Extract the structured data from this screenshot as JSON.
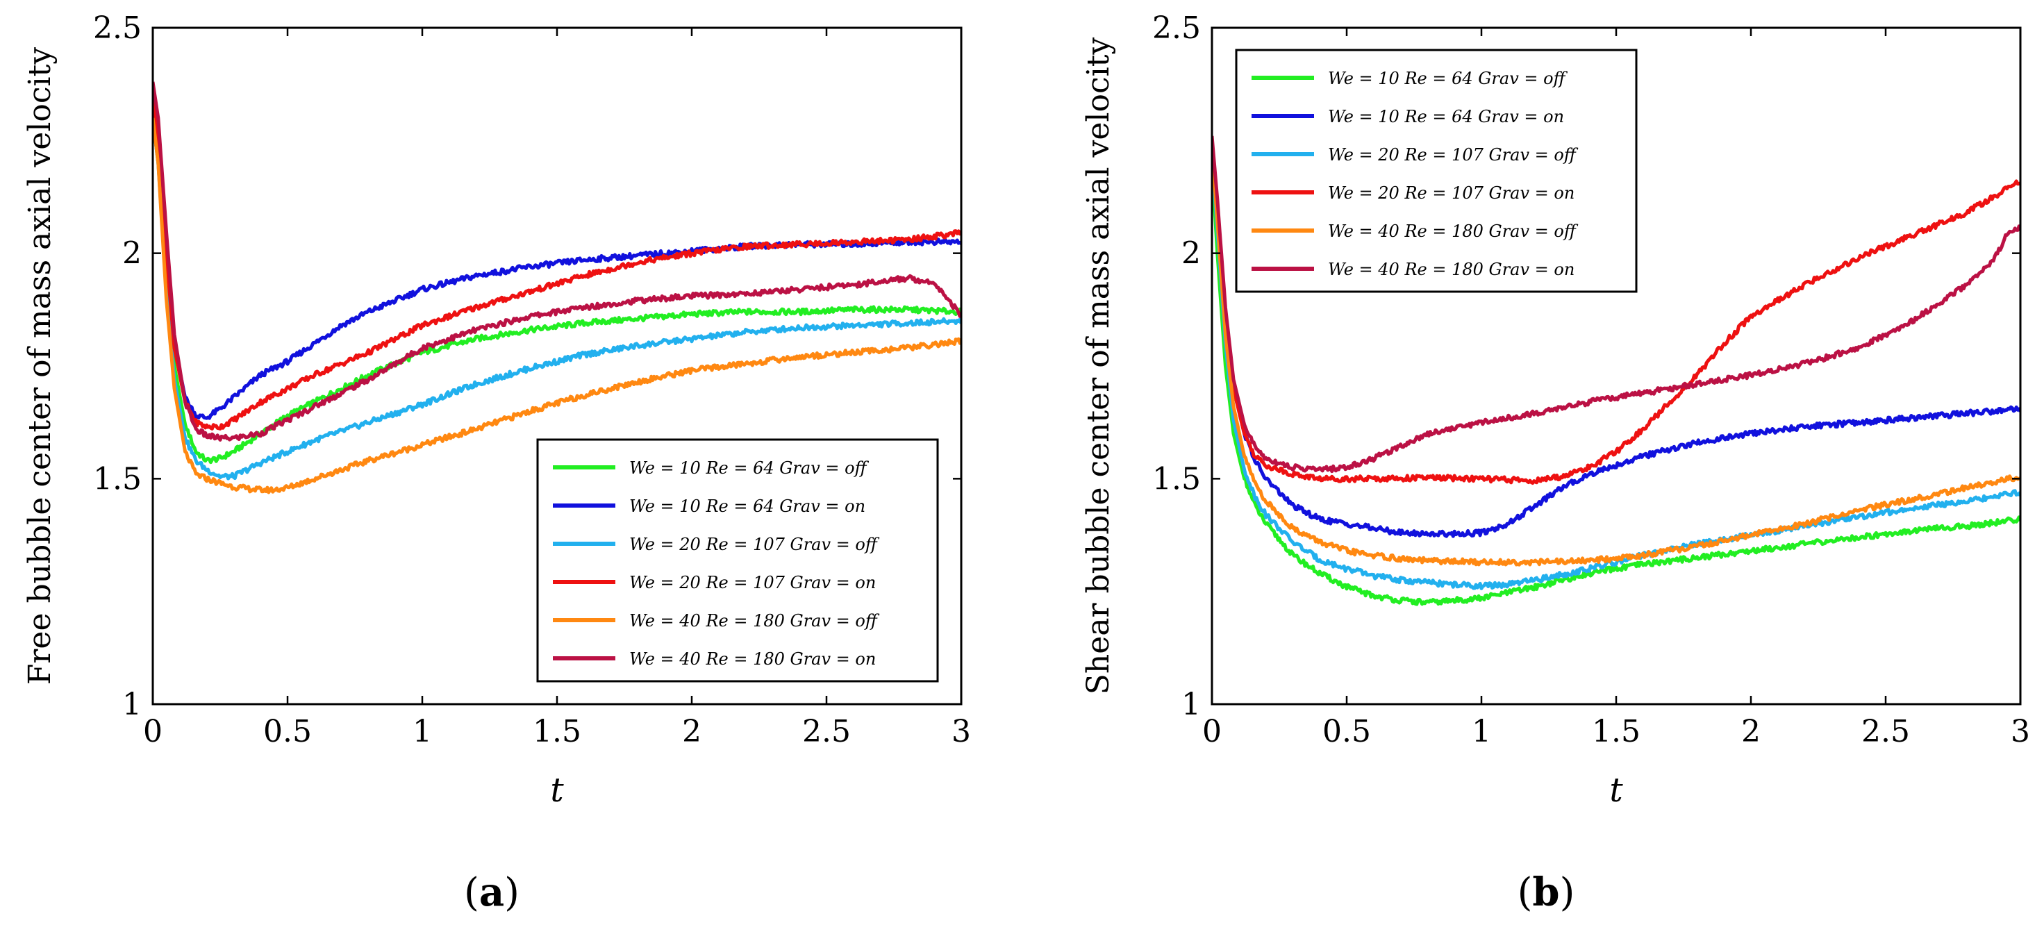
{
  "chart_data": [
    {
      "type": "line",
      "panel": "(a)",
      "panel_letter": "a",
      "xlabel": "t",
      "ylabel": "Free bubble center of mass axial velocity",
      "xlim": [
        0,
        3
      ],
      "ylim": [
        1,
        2.5
      ],
      "xticks": [
        0,
        0.5,
        1,
        1.5,
        2,
        2.5,
        3
      ],
      "xtick_labels": [
        "0",
        "0.5",
        "1",
        "1.5",
        "2",
        "2.5",
        "3"
      ],
      "yticks": [
        1,
        1.5,
        2,
        2.5
      ],
      "ytick_labels": [
        "1",
        "1.5",
        "2",
        "2.5"
      ],
      "legend_position": "bottom-right",
      "series": [
        {
          "name": "We = 10 Re = 64 Grav = off",
          "color": "#22ee22",
          "x": [
            0,
            0.02,
            0.05,
            0.08,
            0.12,
            0.16,
            0.2,
            0.25,
            0.3,
            0.4,
            0.5,
            0.6,
            0.7,
            0.8,
            1.0,
            1.2,
            1.4,
            1.6,
            1.8,
            2.0,
            2.2,
            2.4,
            2.6,
            2.8,
            3.0
          ],
          "y": [
            2.3,
            2.2,
            1.95,
            1.75,
            1.62,
            1.56,
            1.54,
            1.545,
            1.56,
            1.6,
            1.64,
            1.67,
            1.7,
            1.73,
            1.78,
            1.81,
            1.83,
            1.845,
            1.855,
            1.865,
            1.87,
            1.87,
            1.875,
            1.875,
            1.87
          ]
        },
        {
          "name": "We = 10 Re = 64 Grav = on",
          "color": "#1111dd",
          "x": [
            0,
            0.02,
            0.05,
            0.08,
            0.12,
            0.16,
            0.2,
            0.25,
            0.3,
            0.4,
            0.5,
            0.6,
            0.7,
            0.8,
            1.0,
            1.2,
            1.4,
            1.6,
            1.8,
            2.0,
            2.2,
            2.4,
            2.6,
            2.8,
            3.0
          ],
          "y": [
            2.35,
            2.25,
            2.0,
            1.8,
            1.68,
            1.64,
            1.635,
            1.655,
            1.68,
            1.73,
            1.76,
            1.8,
            1.84,
            1.87,
            1.92,
            1.95,
            1.97,
            1.985,
            1.995,
            2.005,
            2.015,
            2.02,
            2.02,
            2.025,
            2.025
          ]
        },
        {
          "name": "We = 20 Re = 107 Grav = off",
          "color": "#22b0ee",
          "x": [
            0,
            0.02,
            0.05,
            0.08,
            0.12,
            0.16,
            0.2,
            0.25,
            0.3,
            0.35,
            0.4,
            0.5,
            0.6,
            0.8,
            1.0,
            1.2,
            1.4,
            1.6,
            1.8,
            2.0,
            2.2,
            2.4,
            2.6,
            2.8,
            3.0
          ],
          "y": [
            2.3,
            2.2,
            1.92,
            1.72,
            1.59,
            1.54,
            1.52,
            1.505,
            1.505,
            1.52,
            1.535,
            1.56,
            1.585,
            1.625,
            1.665,
            1.71,
            1.745,
            1.775,
            1.795,
            1.81,
            1.825,
            1.835,
            1.84,
            1.845,
            1.85
          ]
        },
        {
          "name": "We = 20 Re = 107 Grav = on",
          "color": "#ee1111",
          "x": [
            0,
            0.02,
            0.05,
            0.08,
            0.12,
            0.16,
            0.2,
            0.25,
            0.3,
            0.4,
            0.5,
            0.6,
            0.8,
            1.0,
            1.2,
            1.4,
            1.6,
            1.8,
            2.0,
            2.2,
            2.4,
            2.6,
            2.8,
            3.0
          ],
          "y": [
            2.35,
            2.25,
            2.0,
            1.79,
            1.67,
            1.625,
            1.615,
            1.615,
            1.63,
            1.67,
            1.7,
            1.73,
            1.78,
            1.84,
            1.88,
            1.915,
            1.95,
            1.98,
            2.0,
            2.015,
            2.02,
            2.025,
            2.03,
            2.045
          ]
        },
        {
          "name": "We = 40 Re = 180 Grav = off",
          "color": "#ff8811",
          "x": [
            0,
            0.02,
            0.05,
            0.08,
            0.12,
            0.16,
            0.2,
            0.25,
            0.3,
            0.35,
            0.4,
            0.45,
            0.5,
            0.6,
            0.8,
            1.0,
            1.2,
            1.4,
            1.6,
            1.8,
            2.0,
            2.2,
            2.4,
            2.6,
            2.8,
            3.0
          ],
          "y": [
            2.3,
            2.2,
            1.9,
            1.7,
            1.56,
            1.51,
            1.5,
            1.49,
            1.482,
            1.478,
            1.475,
            1.475,
            1.48,
            1.5,
            1.54,
            1.575,
            1.61,
            1.65,
            1.685,
            1.715,
            1.74,
            1.755,
            1.77,
            1.78,
            1.79,
            1.805
          ]
        },
        {
          "name": "We = 40 Re = 180 Grav = on",
          "color": "#bb1144",
          "x": [
            0,
            0.02,
            0.05,
            0.08,
            0.12,
            0.16,
            0.2,
            0.25,
            0.3,
            0.35,
            0.4,
            0.5,
            0.6,
            0.8,
            1.0,
            1.2,
            1.4,
            1.6,
            1.8,
            2.0,
            2.2,
            2.4,
            2.6,
            2.8,
            2.9,
            2.95,
            3.0
          ],
          "y": [
            2.38,
            2.3,
            2.05,
            1.82,
            1.67,
            1.61,
            1.595,
            1.59,
            1.59,
            1.595,
            1.6,
            1.63,
            1.66,
            1.72,
            1.79,
            1.83,
            1.86,
            1.88,
            1.895,
            1.905,
            1.91,
            1.92,
            1.93,
            1.945,
            1.935,
            1.9,
            1.86
          ]
        }
      ]
    },
    {
      "type": "line",
      "panel": "(b)",
      "panel_letter": "b",
      "xlabel": "t",
      "ylabel": "Shear bubble center of mass axial velocity",
      "xlim": [
        0,
        3
      ],
      "ylim": [
        1,
        2.5
      ],
      "xticks": [
        0,
        0.5,
        1,
        1.5,
        2,
        2.5,
        3
      ],
      "xtick_labels": [
        "0",
        "0.5",
        "1",
        "1.5",
        "2",
        "2.5",
        "3"
      ],
      "yticks": [
        1,
        1.5,
        2,
        2.5
      ],
      "ytick_labels": [
        "1",
        "1.5",
        "2",
        "2.5"
      ],
      "legend_position": "top-left",
      "series": [
        {
          "name": "We = 10 Re = 64 Grav = off",
          "color": "#22ee22",
          "x": [
            0,
            0.02,
            0.05,
            0.08,
            0.12,
            0.16,
            0.2,
            0.3,
            0.4,
            0.5,
            0.6,
            0.7,
            0.8,
            0.9,
            1.0,
            1.2,
            1.4,
            1.6,
            1.8,
            2.0,
            2.2,
            2.4,
            2.6,
            2.8,
            3.0
          ],
          "y": [
            2.2,
            2.0,
            1.75,
            1.6,
            1.5,
            1.44,
            1.4,
            1.33,
            1.29,
            1.26,
            1.24,
            1.23,
            1.225,
            1.23,
            1.235,
            1.26,
            1.29,
            1.31,
            1.325,
            1.34,
            1.355,
            1.37,
            1.385,
            1.395,
            1.41
          ]
        },
        {
          "name": "We = 10 Re = 64 Grav = on",
          "color": "#1111dd",
          "x": [
            0,
            0.02,
            0.05,
            0.08,
            0.12,
            0.16,
            0.2,
            0.3,
            0.4,
            0.5,
            0.6,
            0.7,
            0.8,
            0.9,
            1.0,
            1.1,
            1.2,
            1.3,
            1.4,
            1.5,
            1.6,
            1.8,
            2.0,
            2.2,
            2.4,
            2.6,
            2.8,
            3.0
          ],
          "y": [
            2.25,
            2.1,
            1.85,
            1.7,
            1.6,
            1.54,
            1.5,
            1.44,
            1.41,
            1.4,
            1.39,
            1.38,
            1.378,
            1.378,
            1.38,
            1.4,
            1.44,
            1.48,
            1.51,
            1.53,
            1.55,
            1.58,
            1.6,
            1.615,
            1.625,
            1.635,
            1.645,
            1.655
          ]
        },
        {
          "name": "We = 20 Re = 107 Grav = off",
          "color": "#22b0ee",
          "x": [
            0,
            0.02,
            0.05,
            0.08,
            0.12,
            0.16,
            0.2,
            0.3,
            0.4,
            0.5,
            0.6,
            0.7,
            0.8,
            0.9,
            1.0,
            1.1,
            1.2,
            1.4,
            1.6,
            1.8,
            2.0,
            2.2,
            2.4,
            2.6,
            2.8,
            3.0
          ],
          "y": [
            2.22,
            2.05,
            1.8,
            1.63,
            1.52,
            1.46,
            1.42,
            1.36,
            1.32,
            1.3,
            1.285,
            1.275,
            1.27,
            1.265,
            1.262,
            1.265,
            1.275,
            1.3,
            1.33,
            1.355,
            1.375,
            1.395,
            1.415,
            1.435,
            1.45,
            1.47
          ]
        },
        {
          "name": "We = 20 Re = 107 Grav = on",
          "color": "#ee1111",
          "x": [
            0,
            0.02,
            0.05,
            0.08,
            0.12,
            0.16,
            0.2,
            0.3,
            0.4,
            0.5,
            0.6,
            0.8,
            1.0,
            1.2,
            1.3,
            1.4,
            1.5,
            1.6,
            1.7,
            1.8,
            1.9,
            2.0,
            2.2,
            2.4,
            2.6,
            2.8,
            3.0
          ],
          "y": [
            2.25,
            2.1,
            1.85,
            1.7,
            1.6,
            1.55,
            1.53,
            1.51,
            1.5,
            1.5,
            1.5,
            1.502,
            1.5,
            1.495,
            1.505,
            1.525,
            1.56,
            1.61,
            1.67,
            1.73,
            1.8,
            1.86,
            1.93,
            1.99,
            2.04,
            2.09,
            2.16
          ]
        },
        {
          "name": "We = 40 Re = 180 Grav = off",
          "color": "#ff8811",
          "x": [
            0,
            0.02,
            0.05,
            0.08,
            0.12,
            0.16,
            0.2,
            0.3,
            0.4,
            0.5,
            0.6,
            0.7,
            0.8,
            1.0,
            1.2,
            1.4,
            1.6,
            1.8,
            2.0,
            2.2,
            2.4,
            2.6,
            2.8,
            3.0
          ],
          "y": [
            2.23,
            2.07,
            1.82,
            1.66,
            1.55,
            1.49,
            1.45,
            1.39,
            1.36,
            1.34,
            1.33,
            1.322,
            1.318,
            1.315,
            1.315,
            1.318,
            1.33,
            1.35,
            1.375,
            1.4,
            1.43,
            1.455,
            1.48,
            1.505
          ]
        },
        {
          "name": "We = 40 Re = 180 Grav = on",
          "color": "#bb1144",
          "x": [
            0,
            0.02,
            0.05,
            0.08,
            0.12,
            0.16,
            0.2,
            0.3,
            0.4,
            0.5,
            0.6,
            0.8,
            1.0,
            1.2,
            1.4,
            1.6,
            1.8,
            2.0,
            2.2,
            2.4,
            2.6,
            2.8,
            2.9,
            2.95,
            3.0
          ],
          "y": [
            2.26,
            2.12,
            1.88,
            1.72,
            1.62,
            1.57,
            1.545,
            1.525,
            1.52,
            1.525,
            1.545,
            1.6,
            1.625,
            1.645,
            1.67,
            1.69,
            1.71,
            1.73,
            1.755,
            1.79,
            1.85,
            1.93,
            1.985,
            2.04,
            2.06
          ]
        }
      ]
    }
  ]
}
